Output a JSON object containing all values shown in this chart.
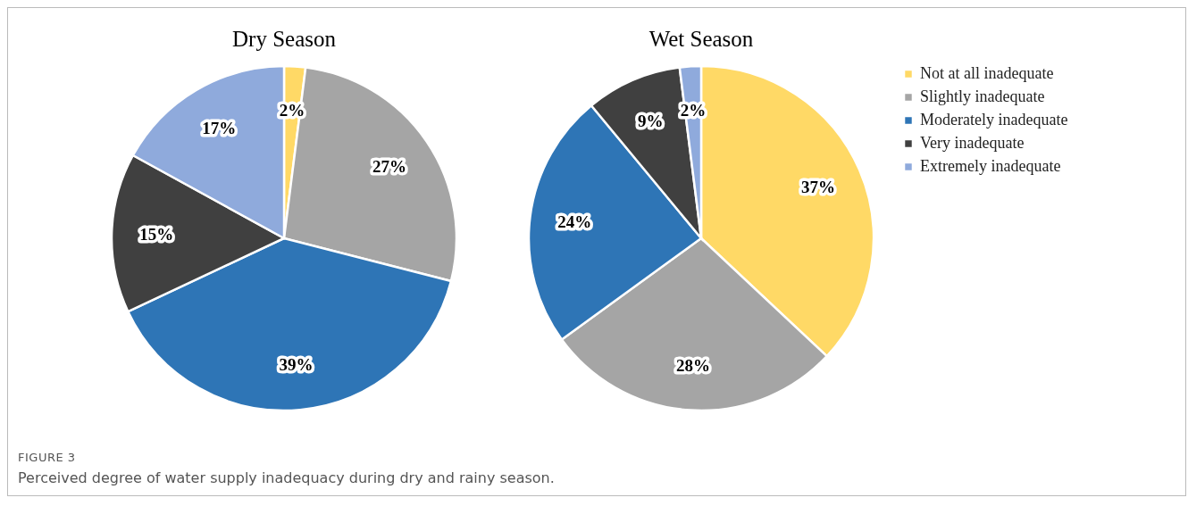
{
  "chart_data": [
    {
      "type": "pie",
      "title": "Dry Season",
      "categories": [
        null,
        null,
        null,
        null,
        null
      ],
      "values": [
        2,
        27,
        39,
        15,
        17
      ],
      "value_labels": [
        "2%",
        "27%",
        "39%",
        "15%",
        "17%"
      ],
      "colors": [
        "#ffd966",
        "#a5a5a5",
        "#2e75b6",
        "#404040",
        "#8faadc"
      ],
      "annotations": [
        "FIGURE 3",
        "Perceived degree of water supply inadequacy during dry and rainy season."
      ]
    },
    {
      "type": "pie",
      "title": "Wet Season",
      "categories": [
        "Not at all inadequate",
        "Slightly inadequate",
        "Moderately inadequate",
        "Very inadequate",
        "Extremely inadequate"
      ],
      "values": [
        37,
        28,
        24,
        9,
        2
      ],
      "value_labels": [
        "37%",
        "28%",
        "24%",
        "9%",
        "2%"
      ],
      "colors": [
        "#ffd966",
        "#a5a5a5",
        "#2e75b6",
        "#404040",
        "#8faadc"
      ],
      "legend": "right"
    }
  ]
}
